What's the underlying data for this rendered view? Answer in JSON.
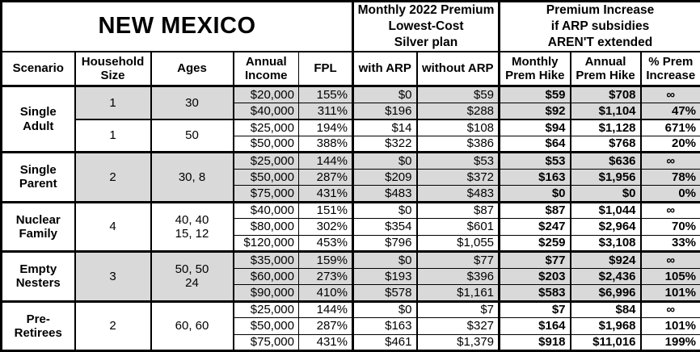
{
  "title": "NEW MEXICO",
  "header": {
    "premium_group": "Monthly 2022 Premium\nLowest-Cost\nSilver plan",
    "increase_group": "Premium Increase\nif ARP subsidies\nAREN'T extended",
    "columns": [
      "Scenario",
      "Household\nSize",
      "Ages",
      "Annual\nIncome",
      "FPL",
      "with ARP",
      "without ARP",
      "Monthly\nPrem Hike",
      "Annual\nPrem Hike",
      "% Prem\nIncrease"
    ]
  },
  "colors": {
    "shaded_row": "#d9d9d9",
    "border": "#000000",
    "background": "#ffffff"
  },
  "groups": [
    {
      "scenario": "Single\nAdult",
      "subgroups": [
        {
          "household": "1",
          "ages": "30",
          "shaded": true,
          "rows": [
            {
              "income": "$20,000",
              "fpl": "155%",
              "with_arp": "$0",
              "without_arp": "$59",
              "monthly_hike": "$59",
              "annual_hike": "$708",
              "pct": "∞"
            },
            {
              "income": "$40,000",
              "fpl": "311%",
              "with_arp": "$196",
              "without_arp": "$288",
              "monthly_hike": "$92",
              "annual_hike": "$1,104",
              "pct": "47%"
            }
          ]
        },
        {
          "household": "1",
          "ages": "50",
          "shaded": false,
          "rows": [
            {
              "income": "$25,000",
              "fpl": "194%",
              "with_arp": "$14",
              "without_arp": "$108",
              "monthly_hike": "$94",
              "annual_hike": "$1,128",
              "pct": "671%"
            },
            {
              "income": "$50,000",
              "fpl": "388%",
              "with_arp": "$322",
              "without_arp": "$386",
              "monthly_hike": "$64",
              "annual_hike": "$768",
              "pct": "20%"
            }
          ]
        }
      ]
    },
    {
      "scenario": "Single\nParent",
      "subgroups": [
        {
          "household": "2",
          "ages": "30, 8",
          "shaded": true,
          "rows": [
            {
              "income": "$25,000",
              "fpl": "144%",
              "with_arp": "$0",
              "without_arp": "$53",
              "monthly_hike": "$53",
              "annual_hike": "$636",
              "pct": "∞"
            },
            {
              "income": "$50,000",
              "fpl": "287%",
              "with_arp": "$209",
              "without_arp": "$372",
              "monthly_hike": "$163",
              "annual_hike": "$1,956",
              "pct": "78%"
            },
            {
              "income": "$75,000",
              "fpl": "431%",
              "with_arp": "$483",
              "without_arp": "$483",
              "monthly_hike": "$0",
              "annual_hike": "$0",
              "pct": "0%"
            }
          ]
        }
      ]
    },
    {
      "scenario": "Nuclear\nFamily",
      "subgroups": [
        {
          "household": "4",
          "ages": "40, 40\n15, 12",
          "shaded": false,
          "rows": [
            {
              "income": "$40,000",
              "fpl": "151%",
              "with_arp": "$0",
              "without_arp": "$87",
              "monthly_hike": "$87",
              "annual_hike": "$1,044",
              "pct": "∞"
            },
            {
              "income": "$80,000",
              "fpl": "302%",
              "with_arp": "$354",
              "without_arp": "$601",
              "monthly_hike": "$247",
              "annual_hike": "$2,964",
              "pct": "70%"
            },
            {
              "income": "$120,000",
              "fpl": "453%",
              "with_arp": "$796",
              "without_arp": "$1,055",
              "monthly_hike": "$259",
              "annual_hike": "$3,108",
              "pct": "33%"
            }
          ]
        }
      ]
    },
    {
      "scenario": "Empty\nNesters",
      "subgroups": [
        {
          "household": "3",
          "ages": "50, 50\n24",
          "shaded": true,
          "rows": [
            {
              "income": "$35,000",
              "fpl": "159%",
              "with_arp": "$0",
              "without_arp": "$77",
              "monthly_hike": "$77",
              "annual_hike": "$924",
              "pct": "∞"
            },
            {
              "income": "$60,000",
              "fpl": "273%",
              "with_arp": "$193",
              "without_arp": "$396",
              "monthly_hike": "$203",
              "annual_hike": "$2,436",
              "pct": "105%"
            },
            {
              "income": "$90,000",
              "fpl": "410%",
              "with_arp": "$578",
              "without_arp": "$1,161",
              "monthly_hike": "$583",
              "annual_hike": "$6,996",
              "pct": "101%"
            }
          ]
        }
      ]
    },
    {
      "scenario": "Pre-\nRetirees",
      "subgroups": [
        {
          "household": "2",
          "ages": "60, 60",
          "shaded": false,
          "rows": [
            {
              "income": "$25,000",
              "fpl": "144%",
              "with_arp": "$0",
              "without_arp": "$7",
              "monthly_hike": "$7",
              "annual_hike": "$84",
              "pct": "∞"
            },
            {
              "income": "$50,000",
              "fpl": "287%",
              "with_arp": "$163",
              "without_arp": "$327",
              "monthly_hike": "$164",
              "annual_hike": "$1,968",
              "pct": "101%"
            },
            {
              "income": "$75,000",
              "fpl": "431%",
              "with_arp": "$461",
              "without_arp": "$1,379",
              "monthly_hike": "$918",
              "annual_hike": "$11,016",
              "pct": "199%"
            }
          ]
        }
      ]
    }
  ]
}
